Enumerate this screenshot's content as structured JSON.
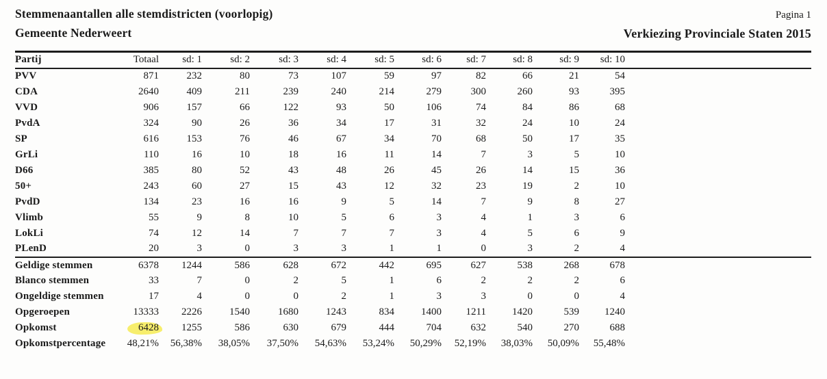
{
  "page": {
    "title_line1": "Stemmenaantallen alle stemdistricten (voorlopig)",
    "title_line2": "Gemeente Nederweert",
    "page_number": "Pagina 1",
    "election_title": "Verkiezing Provinciale Staten 2015"
  },
  "colors": {
    "highlight_marker": "#f7ee6d",
    "text": "#1a1a1a",
    "rule": "#1c1c1c",
    "background": "#fdfdfc"
  },
  "table": {
    "columns": [
      "Partij",
      "Totaal",
      "sd: 1",
      "sd: 2",
      "sd: 3",
      "sd: 4",
      "sd: 5",
      "sd: 6",
      "sd: 7",
      "sd: 8",
      "sd: 9",
      "sd: 10"
    ],
    "party_rows": [
      {
        "label": "PVV",
        "values": [
          "871",
          "232",
          "80",
          "73",
          "107",
          "59",
          "97",
          "82",
          "66",
          "21",
          "54"
        ]
      },
      {
        "label": "CDA",
        "values": [
          "2640",
          "409",
          "211",
          "239",
          "240",
          "214",
          "279",
          "300",
          "260",
          "93",
          "395"
        ]
      },
      {
        "label": "VVD",
        "values": [
          "906",
          "157",
          "66",
          "122",
          "93",
          "50",
          "106",
          "74",
          "84",
          "86",
          "68"
        ]
      },
      {
        "label": "PvdA",
        "values": [
          "324",
          "90",
          "26",
          "36",
          "34",
          "17",
          "31",
          "32",
          "24",
          "10",
          "24"
        ]
      },
      {
        "label": "SP",
        "values": [
          "616",
          "153",
          "76",
          "46",
          "67",
          "34",
          "70",
          "68",
          "50",
          "17",
          "35"
        ]
      },
      {
        "label": "GrLi",
        "values": [
          "110",
          "16",
          "10",
          "18",
          "16",
          "11",
          "14",
          "7",
          "3",
          "5",
          "10"
        ]
      },
      {
        "label": "D66",
        "values": [
          "385",
          "80",
          "52",
          "43",
          "48",
          "26",
          "45",
          "26",
          "14",
          "15",
          "36"
        ]
      },
      {
        "label": "50+",
        "values": [
          "243",
          "60",
          "27",
          "15",
          "43",
          "12",
          "32",
          "23",
          "19",
          "2",
          "10"
        ]
      },
      {
        "label": "PvdD",
        "values": [
          "134",
          "23",
          "16",
          "16",
          "9",
          "5",
          "14",
          "7",
          "9",
          "8",
          "27"
        ]
      },
      {
        "label": "Vlimb",
        "values": [
          "55",
          "9",
          "8",
          "10",
          "5",
          "6",
          "3",
          "4",
          "1",
          "3",
          "6"
        ]
      },
      {
        "label": "LokLi",
        "values": [
          "74",
          "12",
          "14",
          "7",
          "7",
          "7",
          "3",
          "4",
          "5",
          "6",
          "9"
        ]
      },
      {
        "label": "PLenD",
        "values": [
          "20",
          "3",
          "0",
          "3",
          "3",
          "1",
          "1",
          "0",
          "3",
          "2",
          "4"
        ]
      }
    ],
    "summary_rows": [
      {
        "label": "Geldige stemmen",
        "values": [
          "6378",
          "1244",
          "586",
          "628",
          "672",
          "442",
          "695",
          "627",
          "538",
          "268",
          "678"
        ]
      },
      {
        "label": "Blanco stemmen",
        "values": [
          "33",
          "7",
          "0",
          "2",
          "5",
          "1",
          "6",
          "2",
          "2",
          "2",
          "6"
        ]
      },
      {
        "label": "Ongeldige stemmen",
        "values": [
          "17",
          "4",
          "0",
          "0",
          "2",
          "1",
          "3",
          "3",
          "0",
          "0",
          "4"
        ]
      },
      {
        "label": "Opgeroepen",
        "values": [
          "13333",
          "2226",
          "1540",
          "1680",
          "1243",
          "834",
          "1400",
          "1211",
          "1420",
          "539",
          "1240"
        ]
      },
      {
        "label": "Opkomst",
        "values": [
          "6428",
          "1255",
          "586",
          "630",
          "679",
          "444",
          "704",
          "632",
          "540",
          "270",
          "688"
        ],
        "highlight_col": 0
      },
      {
        "label": "Opkomstpercentage",
        "values": [
          "48,21%",
          "56,38%",
          "38,05%",
          "37,50%",
          "54,63%",
          "53,24%",
          "50,29%",
          "52,19%",
          "38,03%",
          "50,09%",
          "55,48%"
        ]
      }
    ]
  }
}
